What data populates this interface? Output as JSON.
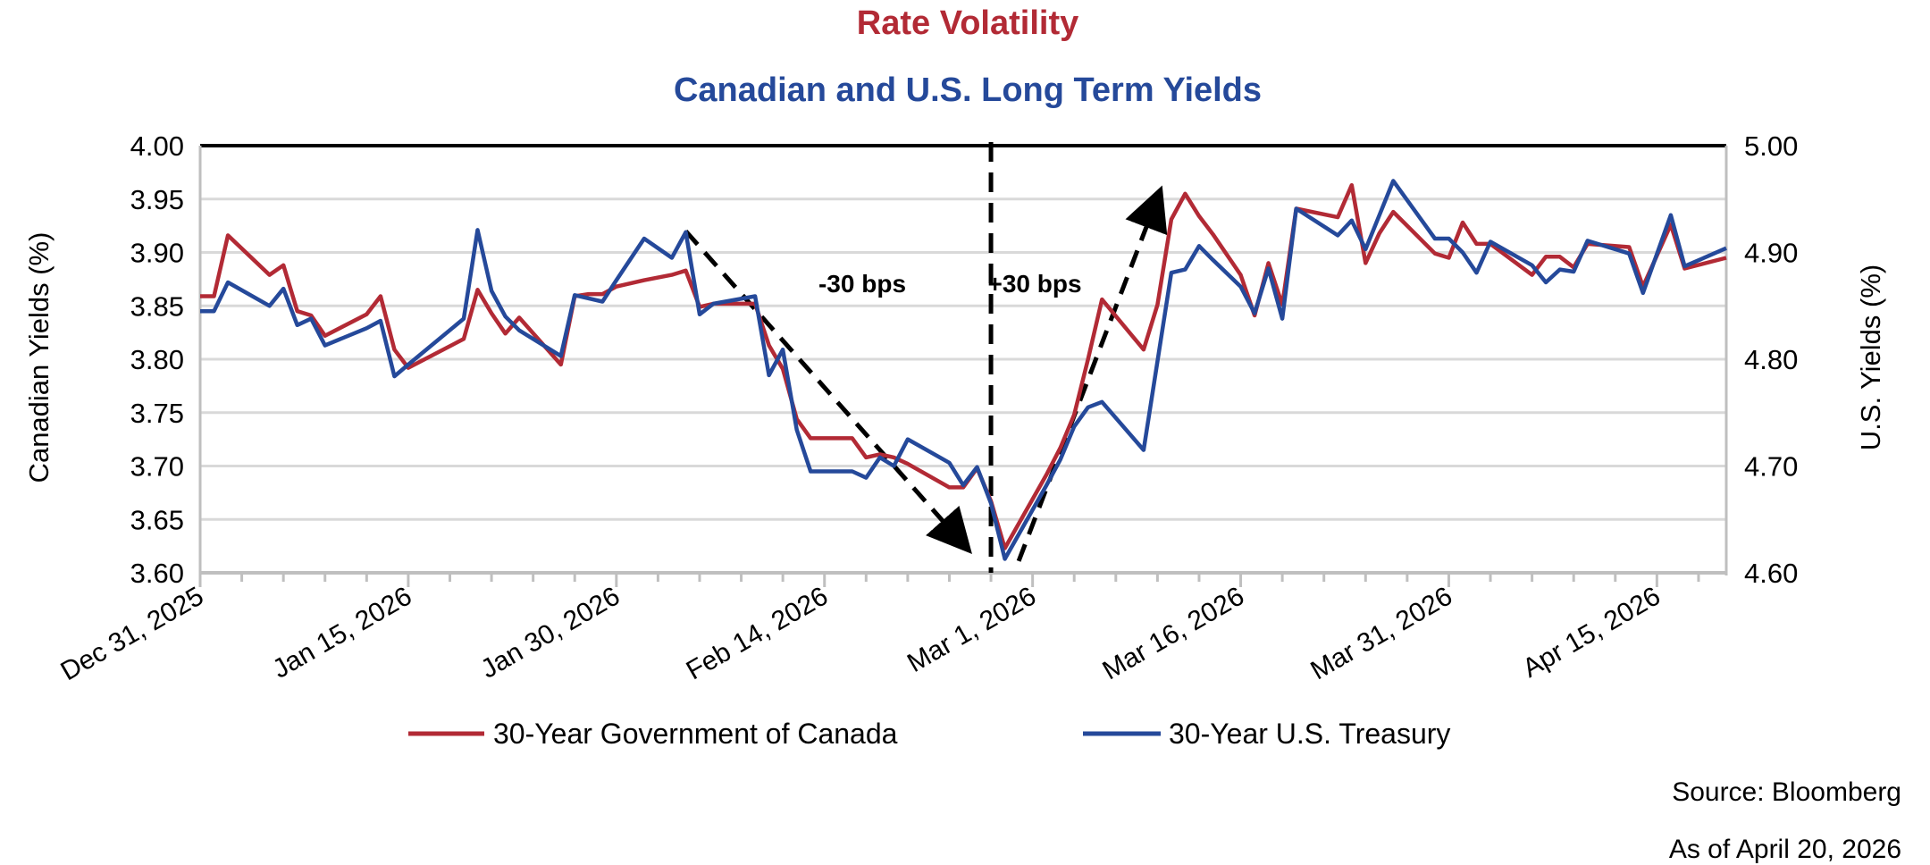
{
  "chart_data": {
    "type": "line",
    "title": "Rate Volatility",
    "subtitle": "Canadian and U.S. Long Term Yields",
    "title_color": "#b22a35",
    "subtitle_color": "#25499a",
    "ylabel": "Canadian Yields (%)",
    "y2label": "U.S. Yields (%)",
    "ylim": [
      3.6,
      4.0
    ],
    "y2lim": [
      4.6,
      5.0
    ],
    "yticks": [
      "3.60",
      "3.65",
      "3.70",
      "3.75",
      "3.80",
      "3.85",
      "3.90",
      "3.95",
      "4.00"
    ],
    "y2ticks": [
      "4.60",
      "4.70",
      "4.80",
      "4.90",
      "5.00"
    ],
    "xlim": [
      "2025-12-31",
      "2026-04-20"
    ],
    "xtick_labels": [
      {
        "date": "2025-12-31",
        "label": "Dec 31, 2025"
      },
      {
        "date": "2026-01-15",
        "label": "Jan 15, 2026"
      },
      {
        "date": "2026-01-30",
        "label": "Jan 30, 2026"
      },
      {
        "date": "2026-02-14",
        "label": "Feb 14, 2026"
      },
      {
        "date": "2026-03-01",
        "label": "Mar 1, 2026"
      },
      {
        "date": "2026-03-16",
        "label": "Mar 16, 2026"
      },
      {
        "date": "2026-03-31",
        "label": "Mar 31, 2026"
      },
      {
        "date": "2026-04-15",
        "label": "Apr 15, 2026"
      }
    ],
    "grid": true,
    "legend_position": "bottom",
    "x": [
      "2025-12-31",
      "2026-01-01",
      "2026-01-02",
      "2026-01-05",
      "2026-01-06",
      "2026-01-07",
      "2026-01-08",
      "2026-01-09",
      "2026-01-12",
      "2026-01-13",
      "2026-01-14",
      "2026-01-15",
      "2026-01-19",
      "2026-01-20",
      "2026-01-21",
      "2026-01-22",
      "2026-01-23",
      "2026-01-26",
      "2026-01-27",
      "2026-01-28",
      "2026-01-29",
      "2026-01-30",
      "2026-02-01",
      "2026-02-03",
      "2026-02-04",
      "2026-02-05",
      "2026-02-06",
      "2026-02-09",
      "2026-02-10",
      "2026-02-11",
      "2026-02-12",
      "2026-02-13",
      "2026-02-16",
      "2026-02-17",
      "2026-02-18",
      "2026-02-19",
      "2026-02-20",
      "2026-02-23",
      "2026-02-24",
      "2026-02-25",
      "2026-02-26",
      "2026-02-27",
      "2026-03-02",
      "2026-03-03",
      "2026-03-04",
      "2026-03-05",
      "2026-03-06",
      "2026-03-09",
      "2026-03-10",
      "2026-03-11",
      "2026-03-12",
      "2026-03-13",
      "2026-03-14",
      "2026-03-16",
      "2026-03-17",
      "2026-03-18",
      "2026-03-19",
      "2026-03-20",
      "2026-03-23",
      "2026-03-24",
      "2026-03-25",
      "2026-03-26",
      "2026-03-27",
      "2026-03-30",
      "2026-03-31",
      "2026-04-01",
      "2026-04-02",
      "2026-04-03",
      "2026-04-06",
      "2026-04-07",
      "2026-04-08",
      "2026-04-09",
      "2026-04-10",
      "2026-04-13",
      "2026-04-14",
      "2026-04-16",
      "2026-04-17",
      "2026-04-20"
    ],
    "series": [
      {
        "name": "30-Year Government of Canada",
        "axis": "left",
        "color": "#b22a35",
        "values": [
          3.859,
          3.859,
          3.916,
          3.879,
          3.888,
          3.845,
          3.841,
          3.822,
          3.842,
          3.859,
          3.809,
          3.792,
          3.819,
          3.865,
          3.843,
          3.824,
          3.839,
          3.795,
          3.859,
          3.861,
          3.861,
          3.868,
          3.874,
          3.879,
          3.883,
          3.849,
          3.852,
          3.852,
          3.813,
          3.791,
          3.744,
          3.726,
          3.726,
          3.708,
          3.711,
          3.708,
          3.702,
          3.68,
          3.68,
          3.698,
          3.667,
          3.623,
          3.692,
          3.717,
          3.748,
          3.8,
          3.856,
          3.809,
          3.851,
          3.931,
          3.955,
          3.934,
          3.917,
          3.879,
          3.841,
          3.89,
          3.851,
          3.941,
          3.933,
          3.963,
          3.89,
          3.918,
          3.938,
          3.899,
          3.895,
          3.928,
          3.908,
          3.908,
          3.879,
          3.896,
          3.896,
          3.886,
          3.908,
          3.905,
          3.868,
          3.926,
          3.885,
          3.895
        ]
      },
      {
        "name": "30-Year U.S. Treasury",
        "axis": "right",
        "color": "#25499a",
        "values": [
          4.845,
          4.845,
          4.872,
          4.85,
          4.866,
          4.832,
          4.838,
          4.813,
          4.829,
          4.836,
          4.784,
          4.795,
          4.838,
          4.921,
          4.864,
          4.84,
          4.827,
          4.803,
          4.86,
          4.857,
          4.854,
          4.874,
          4.913,
          4.895,
          4.919,
          4.842,
          4.852,
          4.859,
          4.785,
          4.809,
          4.734,
          4.695,
          4.695,
          4.689,
          4.708,
          4.7,
          4.725,
          4.703,
          4.682,
          4.699,
          4.665,
          4.613,
          4.682,
          4.706,
          4.737,
          4.755,
          4.76,
          4.715,
          null,
          4.881,
          4.884,
          4.906,
          4.893,
          4.868,
          4.843,
          4.885,
          4.838,
          4.941,
          4.916,
          4.93,
          4.903,
          4.935,
          4.967,
          4.913,
          4.913,
          4.9,
          4.881,
          4.91,
          4.888,
          4.872,
          4.884,
          4.882,
          4.911,
          4.899,
          4.862,
          4.935,
          4.887,
          4.904
        ]
      }
    ],
    "annotations": {
      "vertical_line_date": "2026-02-26",
      "down_arrow": {
        "from": [
          "2026-02-04",
          3.92
        ],
        "to": [
          "2026-02-24",
          3.627
        ],
        "label": "-30 bps"
      },
      "up_arrow": {
        "from": [
          "2026-02-28",
          3.611
        ],
        "to": [
          "2026-03-10",
          3.951
        ],
        "label": "+30 bps"
      }
    },
    "source": "Source: Bloomberg",
    "as_of": "As of April 20, 2026"
  }
}
